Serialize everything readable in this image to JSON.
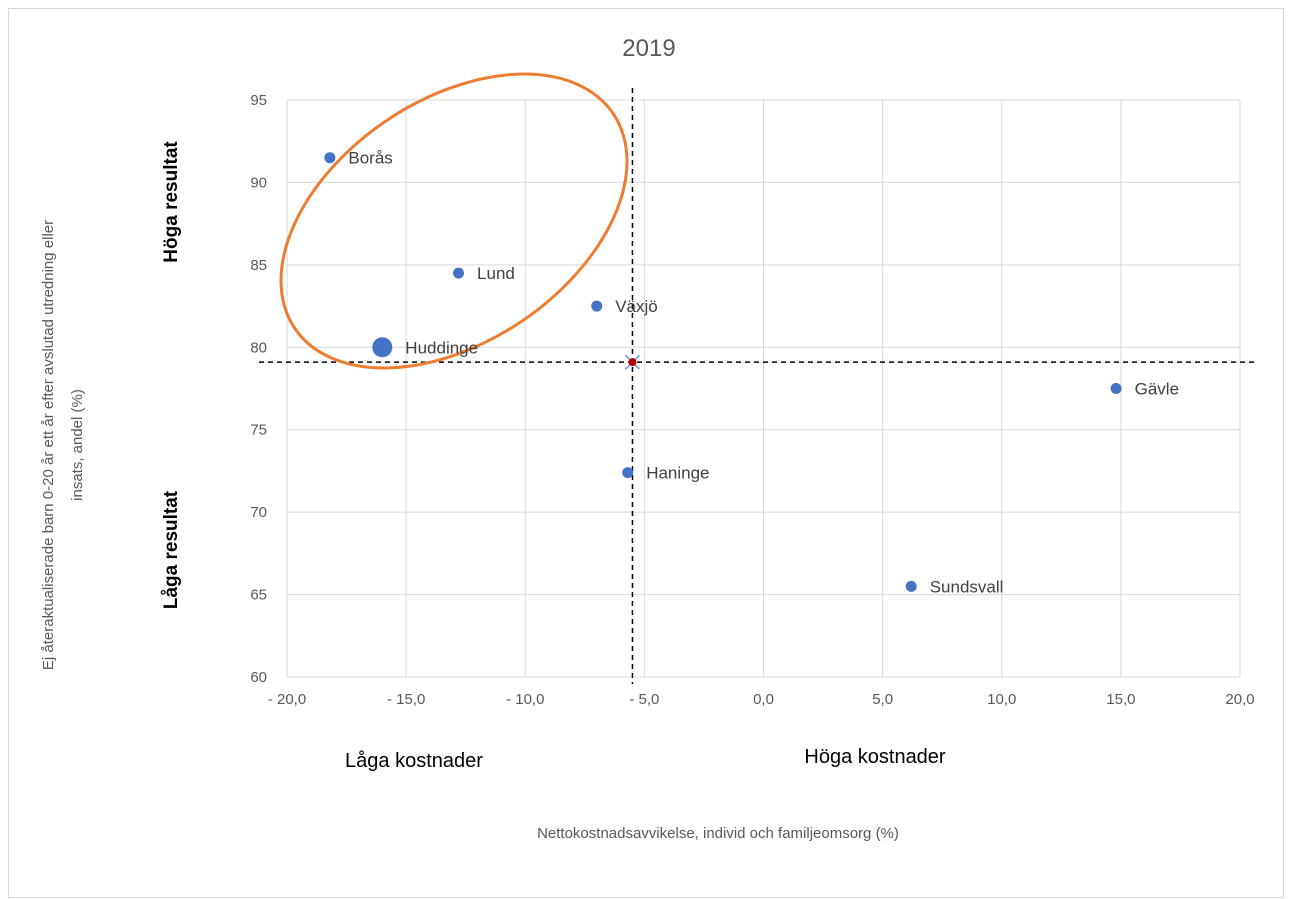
{
  "chart_data": {
    "type": "scatter",
    "title": "2019",
    "xlabel": "Nettokostnadsavvikelse, individ och familjeomsorg (%)",
    "ylabel": "Ej återaktualiserade barn 0-20 år ett år efter avslutad utredning eller insats, andel (%)",
    "ylabel_lines": [
      "Ej återaktualiserade barn 0-20 år ett år efter  avslutad utredning eller",
      "insats, andel (%)"
    ],
    "xlim": [
      -20,
      20
    ],
    "ylim": [
      60,
      95
    ],
    "x_ticks": [
      -20,
      -15,
      -10,
      -5,
      0,
      5,
      10,
      15,
      20
    ],
    "x_tick_labels": [
      "- 20,0",
      "- 15,0",
      "- 10,0",
      "- 5,0",
      "0,0",
      "5,0",
      "10,0",
      "15,0",
      "20,0"
    ],
    "y_ticks": [
      60,
      65,
      70,
      75,
      80,
      85,
      90,
      95
    ],
    "y_tick_labels": [
      "60",
      "65",
      "70",
      "75",
      "80",
      "85",
      "90",
      "95"
    ],
    "grid": true,
    "points": [
      {
        "label": "Borås",
        "x": -18.2,
        "y": 91.5,
        "size": "normal"
      },
      {
        "label": "Lund",
        "x": -12.8,
        "y": 84.5,
        "size": "normal"
      },
      {
        "label": "Växjö",
        "x": -7.0,
        "y": 82.5,
        "size": "normal"
      },
      {
        "label": "Huddinge",
        "x": -16.0,
        "y": 80.0,
        "size": "large"
      },
      {
        "label": "Haninge",
        "x": -5.7,
        "y": 72.4,
        "size": "normal"
      },
      {
        "label": "Gävle",
        "x": 14.8,
        "y": 77.5,
        "size": "normal"
      },
      {
        "label": "Sundsvall",
        "x": 6.2,
        "y": 65.5,
        "size": "normal"
      }
    ],
    "reference": {
      "x": -5.5,
      "y": 79.1
    },
    "quadrant_labels": {
      "high_results": "Höga resultat",
      "low_results": "Låga resultat",
      "low_costs": "Låga kostnader",
      "high_costs": "Höga kostnader"
    },
    "highlight_ellipse": {
      "color": "#ed7d31",
      "encloses": [
        "Borås",
        "Lund",
        "Huddinge"
      ]
    },
    "colors": {
      "points": "#4472c4",
      "gridline": "#d9d9d9",
      "reference_lines": "#000000",
      "reference_marker": "#c00000"
    }
  }
}
